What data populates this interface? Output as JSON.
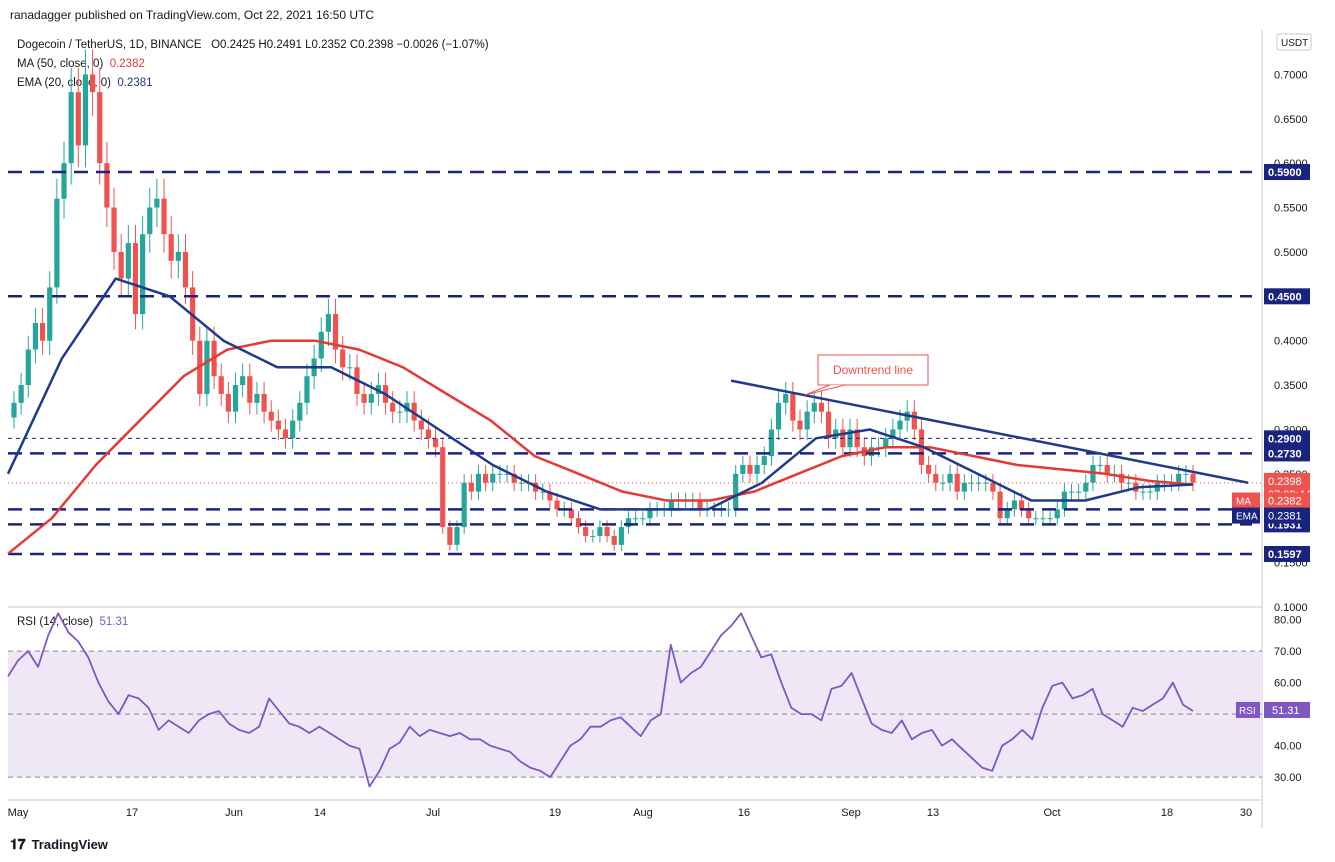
{
  "header": {
    "publisher": "ranadagger published on TradingView.com, Oct 22, 2021 16:50 UTC"
  },
  "legend": {
    "symbol": "Dogecoin / TetherUS, 1D, BINANCE",
    "ohlc": "O0.2425  H0.2491  L0.2352  C0.2398  −0.0026 (−1.07%)",
    "ma_label": "MA (50, close, 0)",
    "ma_value": "0.2382",
    "ema_label": "EMA (20, close, 0)",
    "ema_value": "0.2381"
  },
  "rsi_legend": {
    "label": "RSI (14, close)",
    "value": "51.31"
  },
  "currency": "USDT",
  "footer": {
    "brand": "TradingView"
  },
  "colors": {
    "up": "#26a69a",
    "down": "#ef5350",
    "ma": "#e53935",
    "ema": "#1e3a8a",
    "levels": "#1a237e",
    "rsi": "#7e57c2",
    "rsi_band": "#ede7f6"
  },
  "chart_data": [
    {
      "type": "candlestick",
      "title": "Dogecoin / TetherUS, 1D, BINANCE",
      "ylim": [
        0.1,
        0.75
      ],
      "y_ticks": [
        "0.1000",
        "0.1500",
        "0.2000",
        "0.2500",
        "0.3000",
        "0.3500",
        "0.4000",
        "0.4500",
        "0.5000",
        "0.5500",
        "0.6000",
        "0.6500",
        "0.7000"
      ],
      "x_ticks": [
        "May",
        "17",
        "Jun",
        "14",
        "Jul",
        "19",
        "Aug",
        "16",
        "Sep",
        "13",
        "Oct",
        "18",
        "30"
      ],
      "horizontal_levels": [
        {
          "value": 0.59,
          "label": "0.5900"
        },
        {
          "value": 0.45,
          "label": "0.4500"
        },
        {
          "value": 0.29,
          "label": "0.2900"
        },
        {
          "value": 0.273,
          "label": "0.2730"
        },
        {
          "value": 0.21,
          "label": "0.2100"
        },
        {
          "value": 0.1931,
          "label": "0.1931"
        },
        {
          "value": 0.1597,
          "label": "0.1597"
        }
      ],
      "price_labels": [
        {
          "text": "0.2398",
          "sub": "07:09:44",
          "kind": "last"
        },
        {
          "text": "MA",
          "value": "0.2382",
          "kind": "ma"
        },
        {
          "text": "EMA",
          "value": "0.2381",
          "kind": "ema"
        }
      ],
      "annotation": "Downtrend line",
      "trendline": [
        [
          0.355,
          0.24
        ]
      ],
      "series": [
        {
          "name": "Dogecoin / TetherUS",
          "close": [
            0.33,
            0.35,
            0.39,
            0.42,
            0.4,
            0.46,
            0.56,
            0.6,
            0.68,
            0.62,
            0.7,
            0.68,
            0.6,
            0.55,
            0.5,
            0.47,
            0.51,
            0.43,
            0.52,
            0.55,
            0.56,
            0.52,
            0.49,
            0.5,
            0.46,
            0.4,
            0.34,
            0.4,
            0.36,
            0.34,
            0.32,
            0.35,
            0.36,
            0.33,
            0.34,
            0.32,
            0.31,
            0.3,
            0.29,
            0.31,
            0.33,
            0.36,
            0.38,
            0.41,
            0.43,
            0.39,
            0.37,
            0.37,
            0.34,
            0.33,
            0.34,
            0.35,
            0.33,
            0.32,
            0.32,
            0.33,
            0.31,
            0.3,
            0.29,
            0.28,
            0.19,
            0.17,
            0.19,
            0.24,
            0.23,
            0.25,
            0.24,
            0.25,
            0.25,
            0.25,
            0.24,
            0.24,
            0.24,
            0.23,
            0.23,
            0.22,
            0.21,
            0.21,
            0.2,
            0.19,
            0.18,
            0.18,
            0.19,
            0.18,
            0.17,
            0.19,
            0.2,
            0.2,
            0.2,
            0.21,
            0.21,
            0.21,
            0.22,
            0.22,
            0.22,
            0.22,
            0.21,
            0.21,
            0.21,
            0.21,
            0.21,
            0.25,
            0.26,
            0.25,
            0.26,
            0.27,
            0.3,
            0.33,
            0.34,
            0.31,
            0.3,
            0.32,
            0.33,
            0.32,
            0.29,
            0.3,
            0.28,
            0.3,
            0.28,
            0.27,
            0.28,
            0.28,
            0.29,
            0.3,
            0.31,
            0.32,
            0.3,
            0.26,
            0.25,
            0.24,
            0.24,
            0.25,
            0.23,
            0.24,
            0.24,
            0.24,
            0.24,
            0.23,
            0.2,
            0.21,
            0.22,
            0.21,
            0.2,
            0.2,
            0.2,
            0.2,
            0.21,
            0.23,
            0.23,
            0.23,
            0.24,
            0.26,
            0.26,
            0.25,
            0.25,
            0.24,
            0.24,
            0.23,
            0.23,
            0.23,
            0.24,
            0.24,
            0.24,
            0.25,
            0.25,
            0.24
          ]
        },
        {
          "name": "MA (50, close, 0)",
          "values": [
            0.16,
            0.2,
            0.26,
            0.31,
            0.36,
            0.39,
            0.4,
            0.4,
            0.39,
            0.37,
            0.34,
            0.31,
            0.27,
            0.25,
            0.23,
            0.22,
            0.22,
            0.23,
            0.25,
            0.27,
            0.28,
            0.28,
            0.27,
            0.26,
            0.255,
            0.25,
            0.242,
            0.238
          ]
        },
        {
          "name": "EMA (20, close, 0)",
          "values": [
            0.25,
            0.38,
            0.47,
            0.45,
            0.4,
            0.37,
            0.37,
            0.34,
            0.3,
            0.26,
            0.23,
            0.21,
            0.21,
            0.21,
            0.24,
            0.29,
            0.3,
            0.28,
            0.25,
            0.22,
            0.22,
            0.235,
            0.238
          ]
        }
      ]
    },
    {
      "type": "line",
      "title": "RSI (14, close)",
      "ylim": [
        24,
        84
      ],
      "y_ticks": [
        "30.00",
        "40.00",
        "50.00",
        "60.00",
        "70.00",
        "80.00"
      ],
      "band": [
        30,
        70
      ],
      "mid": 50,
      "last_label": {
        "text": "RSI",
        "value": "51.31"
      },
      "series": [
        {
          "name": "RSI (14, close)",
          "values": [
            62,
            67,
            70,
            65,
            75,
            82,
            76,
            73,
            68,
            60,
            54,
            50,
            56,
            55,
            52,
            45,
            48,
            46,
            44,
            48,
            50,
            51,
            47,
            45,
            44,
            46,
            55,
            51,
            47,
            46,
            44,
            46,
            44,
            42,
            40,
            39,
            27,
            32,
            39,
            41,
            46,
            43,
            45,
            44,
            43,
            44,
            42,
            42,
            40,
            39,
            38,
            35,
            33,
            32,
            30,
            35,
            40,
            42,
            46,
            46,
            48,
            49,
            46,
            43,
            48,
            50,
            72,
            60,
            63,
            65,
            70,
            75,
            78,
            82,
            75,
            68,
            69,
            60,
            52,
            50,
            50,
            48,
            58,
            59,
            63,
            55,
            47,
            45,
            44,
            48,
            42,
            44,
            45,
            40,
            42,
            39,
            36,
            33,
            32,
            40,
            42,
            45,
            42,
            52,
            59,
            60,
            55,
            56,
            58,
            50,
            48,
            46,
            52,
            51,
            53,
            55,
            60,
            53,
            51
          ]
        }
      ]
    }
  ]
}
